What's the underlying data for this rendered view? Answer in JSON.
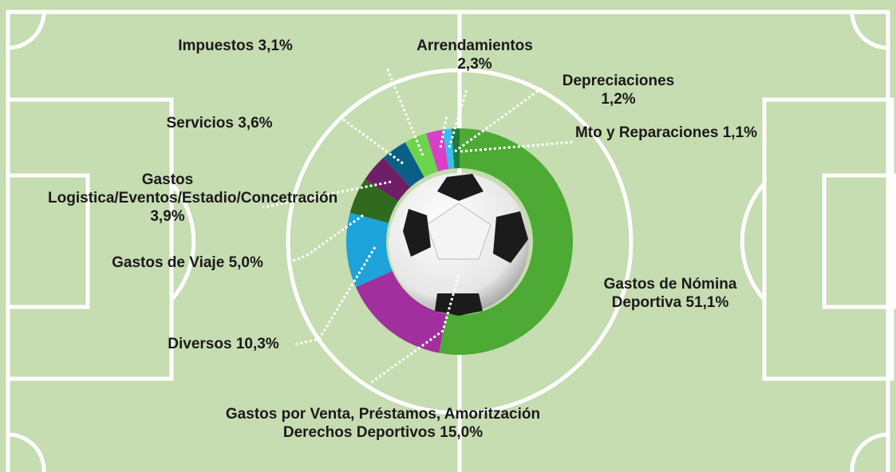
{
  "chart_data": {
    "type": "donut",
    "categories": [
      "Gastos de Nómina Deportiva",
      "Gastos por Venta, Préstamos, Amoritzación Derechos Deportivos",
      "Diversos",
      "Gastos de Viaje",
      "Gastos Logistica/Eventos/Estadio/Concetración",
      "Servicios",
      "Impuestos",
      "Arrendamientos",
      "Depreciaciones",
      "Mto y Reparaciones"
    ],
    "values": [
      51.1,
      15.0,
      10.3,
      5.0,
      3.9,
      3.6,
      3.1,
      2.3,
      1.2,
      1.1
    ],
    "value_labels": [
      "51,1%",
      "15,0%",
      "10,3%",
      "5,0%",
      "3,9%",
      "3,6%",
      "3,1%",
      "2,3%",
      "1,2%",
      "1,1%"
    ],
    "colors": [
      "#4caa35",
      "#a12f9e",
      "#1ba3da",
      "#2f6a1f",
      "#6e1f66",
      "#0a5f87",
      "#6dd44c",
      "#d93fc8",
      "#33c0ee",
      "#1f7a3a"
    ]
  }
}
